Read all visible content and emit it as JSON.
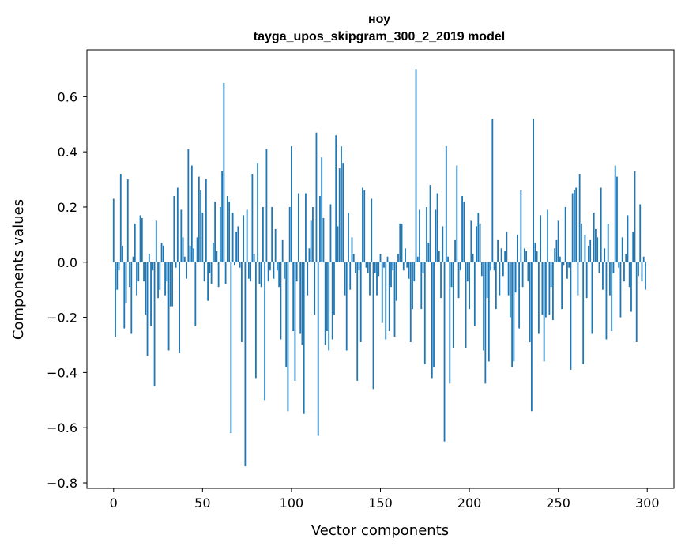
{
  "chart_data": {
    "type": "bar",
    "title_line1": "ноу",
    "title_line2": "tayga_upos_skipgram_300_2_2019 model",
    "xlabel": "Vector components",
    "ylabel": "Components values",
    "xlim": [
      -15,
      315
    ],
    "ylim": [
      -0.82,
      0.77
    ],
    "xticks": [
      0,
      50,
      100,
      150,
      200,
      250,
      300
    ],
    "xtick_labels": [
      "0",
      "50",
      "100",
      "150",
      "200",
      "250",
      "300"
    ],
    "yticks": [
      -0.8,
      -0.6,
      -0.4,
      -0.2,
      0.0,
      0.2,
      0.4,
      0.6
    ],
    "ytick_labels": [
      "−0.8",
      "−0.6",
      "−0.4",
      "−0.2",
      "0.0",
      "0.2",
      "0.4",
      "0.6"
    ],
    "grid": false,
    "bar_color": "#1f77b4",
    "values": [
      0.23,
      -0.27,
      -0.1,
      -0.03,
      0.32,
      0.06,
      -0.24,
      -0.15,
      0.3,
      -0.09,
      -0.26,
      0.02,
      0.14,
      -0.12,
      -0.07,
      0.17,
      0.16,
      -0.07,
      -0.19,
      -0.34,
      0.03,
      -0.23,
      -0.03,
      -0.45,
      0.15,
      -0.13,
      -0.1,
      0.07,
      0.06,
      -0.12,
      -0.07,
      -0.32,
      -0.16,
      -0.16,
      0.24,
      -0.02,
      0.27,
      -0.33,
      0.19,
      0.09,
      0.02,
      -0.06,
      0.41,
      0.06,
      0.35,
      0.05,
      -0.23,
      0.09,
      0.31,
      0.26,
      0.18,
      -0.07,
      0.3,
      -0.14,
      -0.04,
      -0.08,
      0.07,
      0.22,
      0.04,
      -0.09,
      0.2,
      0.33,
      0.65,
      -0.08,
      0.24,
      0.22,
      -0.62,
      0.18,
      -0.01,
      0.11,
      0.13,
      -0.02,
      -0.29,
      0.17,
      -0.74,
      0.19,
      -0.06,
      -0.07,
      0.32,
      0.03,
      -0.42,
      0.36,
      -0.08,
      -0.09,
      0.2,
      -0.5,
      0.41,
      -0.07,
      -0.03,
      0.2,
      -0.06,
      0.12,
      -0.03,
      -0.09,
      -0.28,
      0.08,
      -0.06,
      -0.38,
      -0.54,
      0.2,
      0.42,
      -0.25,
      -0.43,
      -0.07,
      0.25,
      -0.26,
      -0.3,
      -0.55,
      0.25,
      -0.12,
      0.05,
      0.15,
      0.2,
      -0.19,
      0.47,
      -0.63,
      0.24,
      0.38,
      0.16,
      -0.3,
      -0.25,
      -0.32,
      0.21,
      -0.28,
      -0.19,
      0.46,
      0.13,
      0.34,
      0.42,
      0.36,
      -0.12,
      -0.32,
      0.18,
      -0.1,
      0.09,
      0.03,
      -0.04,
      -0.43,
      -0.03,
      -0.29,
      0.27,
      0.26,
      -0.02,
      -0.04,
      -0.12,
      0.23,
      -0.46,
      -0.04,
      -0.12,
      -0.05,
      0.03,
      -0.22,
      -0.02,
      -0.28,
      0.02,
      -0.25,
      -0.09,
      -0.03,
      -0.27,
      -0.14,
      0.03,
      0.14,
      0.14,
      -0.03,
      0.05,
      -0.02,
      -0.06,
      -0.29,
      -0.17,
      -0.07,
      0.7,
      0.02,
      0.19,
      -0.17,
      -0.04,
      -0.37,
      0.2,
      0.07,
      0.28,
      -0.42,
      -0.38,
      0.19,
      0.25,
      0.04,
      -0.13,
      0.13,
      -0.65,
      0.42,
      0.02,
      -0.44,
      -0.09,
      -0.31,
      0.08,
      0.35,
      -0.13,
      -0.03,
      0.24,
      0.22,
      -0.31,
      -0.07,
      -0.17,
      0.15,
      0.03,
      -0.23,
      0.13,
      0.18,
      0.14,
      -0.05,
      -0.32,
      -0.44,
      -0.13,
      -0.36,
      -0.03,
      0.52,
      -0.03,
      -0.17,
      0.08,
      -0.12,
      0.05,
      -0.05,
      0.04,
      0.11,
      -0.12,
      -0.2,
      -0.38,
      -0.36,
      -0.11,
      0.1,
      -0.24,
      0.26,
      -0.09,
      0.05,
      0.04,
      -0.07,
      -0.29,
      -0.54,
      0.52,
      0.07,
      0.04,
      -0.26,
      0.17,
      -0.19,
      -0.36,
      -0.2,
      0.19,
      -0.19,
      -0.09,
      -0.21,
      0.05,
      0.08,
      0.15,
      0.02,
      -0.17,
      -0.01,
      0.2,
      -0.06,
      -0.02,
      -0.39,
      0.25,
      0.26,
      0.27,
      -0.12,
      0.32,
      0.14,
      -0.37,
      0.1,
      -0.13,
      0.06,
      0.08,
      -0.26,
      0.18,
      0.12,
      0.09,
      -0.04,
      0.27,
      -0.1,
      0.05,
      -0.28,
      0.14,
      -0.12,
      -0.25,
      -0.04,
      0.35,
      0.31,
      -0.02,
      -0.2,
      0.09,
      -0.07,
      0.03,
      0.17,
      -0.09,
      -0.18,
      0.11,
      0.33,
      -0.29,
      -0.05,
      0.21,
      -0.07,
      0.02,
      -0.1
    ]
  }
}
